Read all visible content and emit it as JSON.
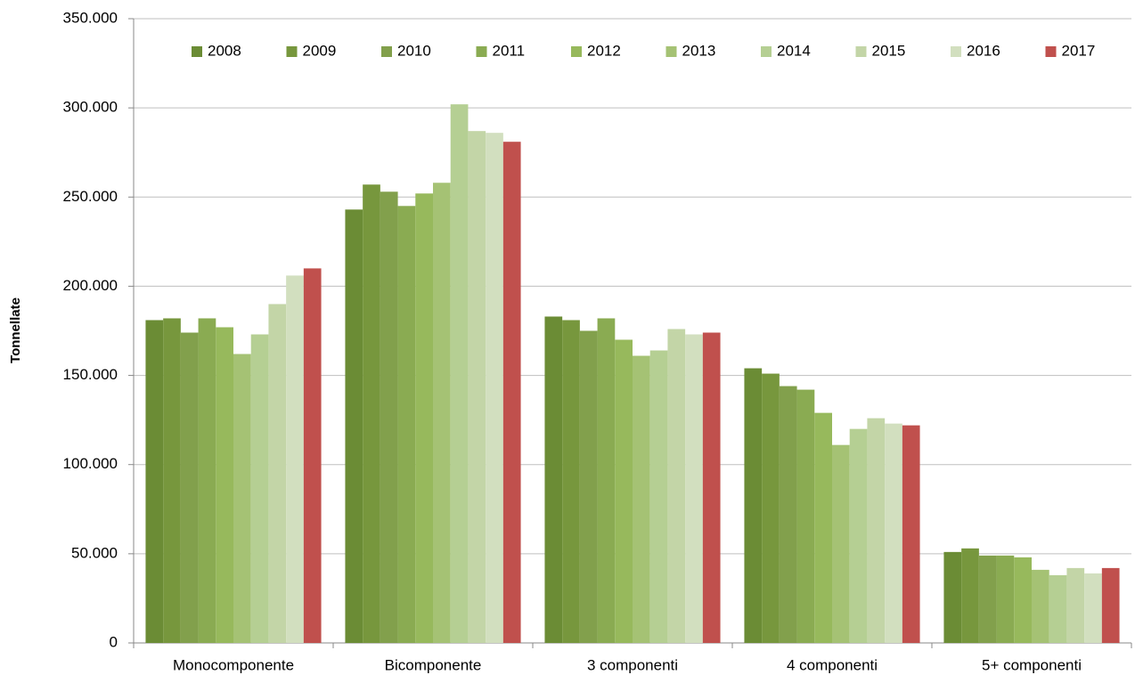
{
  "chart_data": {
    "type": "bar",
    "y_label": "Tonnellate",
    "categories": [
      "Monocomponente",
      "Bicomponente",
      "3 componenti",
      "4 componenti",
      "5+ componenti"
    ],
    "series": [
      {
        "name": "2008",
        "color": "#6b8c35",
        "values": [
          181000,
          243000,
          183000,
          154000,
          51000
        ]
      },
      {
        "name": "2009",
        "color": "#77973d",
        "values": [
          182000,
          257000,
          181000,
          151000,
          53000
        ]
      },
      {
        "name": "2010",
        "color": "#82a04c",
        "values": [
          174000,
          253000,
          175000,
          144000,
          49000
        ]
      },
      {
        "name": "2011",
        "color": "#8aab52",
        "values": [
          182000,
          245000,
          182000,
          142000,
          49000
        ]
      },
      {
        "name": "2012",
        "color": "#97b95c",
        "values": [
          177000,
          252000,
          170000,
          129000,
          48000
        ]
      },
      {
        "name": "2013",
        "color": "#a5c274",
        "values": [
          162000,
          258000,
          161000,
          111000,
          41000
        ]
      },
      {
        "name": "2014",
        "color": "#b5cf93",
        "values": [
          173000,
          302000,
          164000,
          120000,
          38000
        ]
      },
      {
        "name": "2015",
        "color": "#c3d5a7",
        "values": [
          190000,
          287000,
          176000,
          126000,
          42000
        ]
      },
      {
        "name": "2016",
        "color": "#d2dfbf",
        "values": [
          206000,
          286000,
          173000,
          123000,
          39000
        ]
      },
      {
        "name": "2017",
        "color": "#c0504d",
        "values": [
          210000,
          281000,
          174000,
          122000,
          42000
        ]
      }
    ],
    "ylim": [
      0,
      350000
    ],
    "yticks": [
      0,
      {
        "value": 50000,
        "label": "50.000"
      },
      {
        "value": 100000,
        "label": "100.000"
      },
      {
        "value": 150000,
        "label": "150.000"
      },
      {
        "value": 200000,
        "label": "200.000"
      },
      {
        "value": 250000,
        "label": "250.000"
      },
      {
        "value": 300000,
        "label": "300.000"
      },
      {
        "value": 350000,
        "label": "350.000"
      }
    ],
    "grid": true,
    "legend": "top"
  }
}
